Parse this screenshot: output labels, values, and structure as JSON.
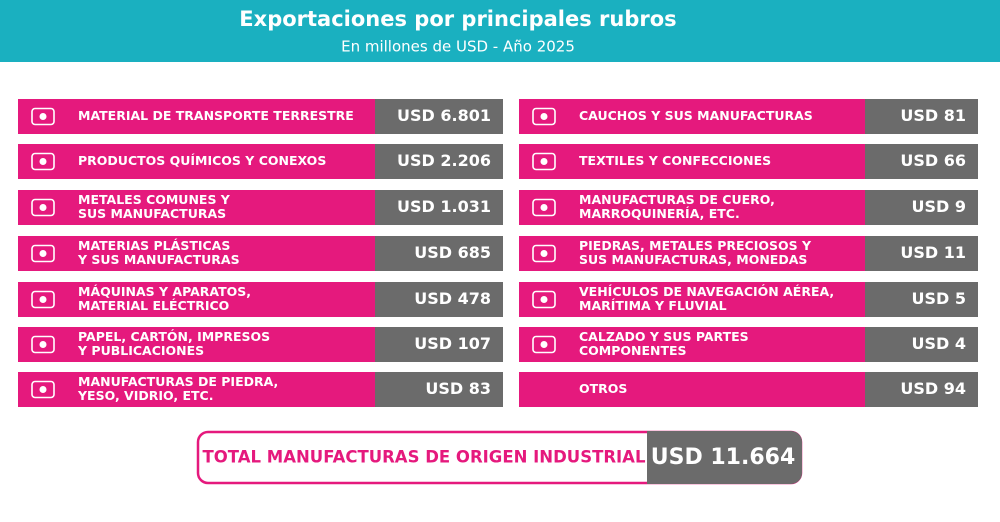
{
  "header": {
    "title": "Exportaciones por principales rubros",
    "subtitle": "En millones de USD - Año 2025"
  },
  "left": [
    {
      "label": [
        "MATERIAL DE TRANSPORTE TERRESTRE"
      ],
      "value": "USD 6.801"
    },
    {
      "label": [
        "PRODUCTOS QUÍMICOS Y CONEXOS"
      ],
      "value": "USD 2.206"
    },
    {
      "label": [
        "METALES COMUNES Y",
        "SUS MANUFACTURAS"
      ],
      "value": "USD 1.031"
    },
    {
      "label": [
        "MATERIAS PLÁSTICAS",
        "Y SUS MANUFACTURAS"
      ],
      "value": "USD 685"
    },
    {
      "label": [
        "MÁQUINAS Y APARATOS,",
        "MATERIAL ELÉCTRICO"
      ],
      "value": "USD 478"
    },
    {
      "label": [
        "PAPEL, CARTÓN, IMPRESOS",
        "Y PUBLICACIONES"
      ],
      "value": "USD 107"
    },
    {
      "label": [
        "MANUFACTURAS DE PIEDRA,",
        "YESO, VIDRIO, ETC."
      ],
      "value": "USD 83"
    }
  ],
  "right": [
    {
      "label": [
        "CAUCHOS Y SUS MANUFACTURAS"
      ],
      "value": "USD 81"
    },
    {
      "label": [
        "TEXTILES Y CONFECCIONES"
      ],
      "value": "USD 66"
    },
    {
      "label": [
        "MANUFACTURAS DE CUERO,",
        "MARROQUINERÍA, ETC."
      ],
      "value": "USD 9"
    },
    {
      "label": [
        "PIEDRAS, METALES PRECIOSOS Y",
        "SUS MANUFACTURAS, MONEDAS"
      ],
      "value": "USD 11"
    },
    {
      "label": [
        "VEHÍCULOS DE NAVEGACIÓN AÉREA,",
        "MARÍTIMA Y FLUVIAL"
      ],
      "value": "USD 5"
    },
    {
      "label": [
        "CALZADO Y SUS PARTES",
        "COMPONENTES"
      ],
      "value": "USD 4"
    },
    {
      "label": [
        "OTROS"
      ],
      "value": "USD 94"
    }
  ],
  "total": {
    "label": "TOTAL MANUFACTURAS DE ORIGEN INDUSTRIAL",
    "value": "USD 11.664"
  }
}
